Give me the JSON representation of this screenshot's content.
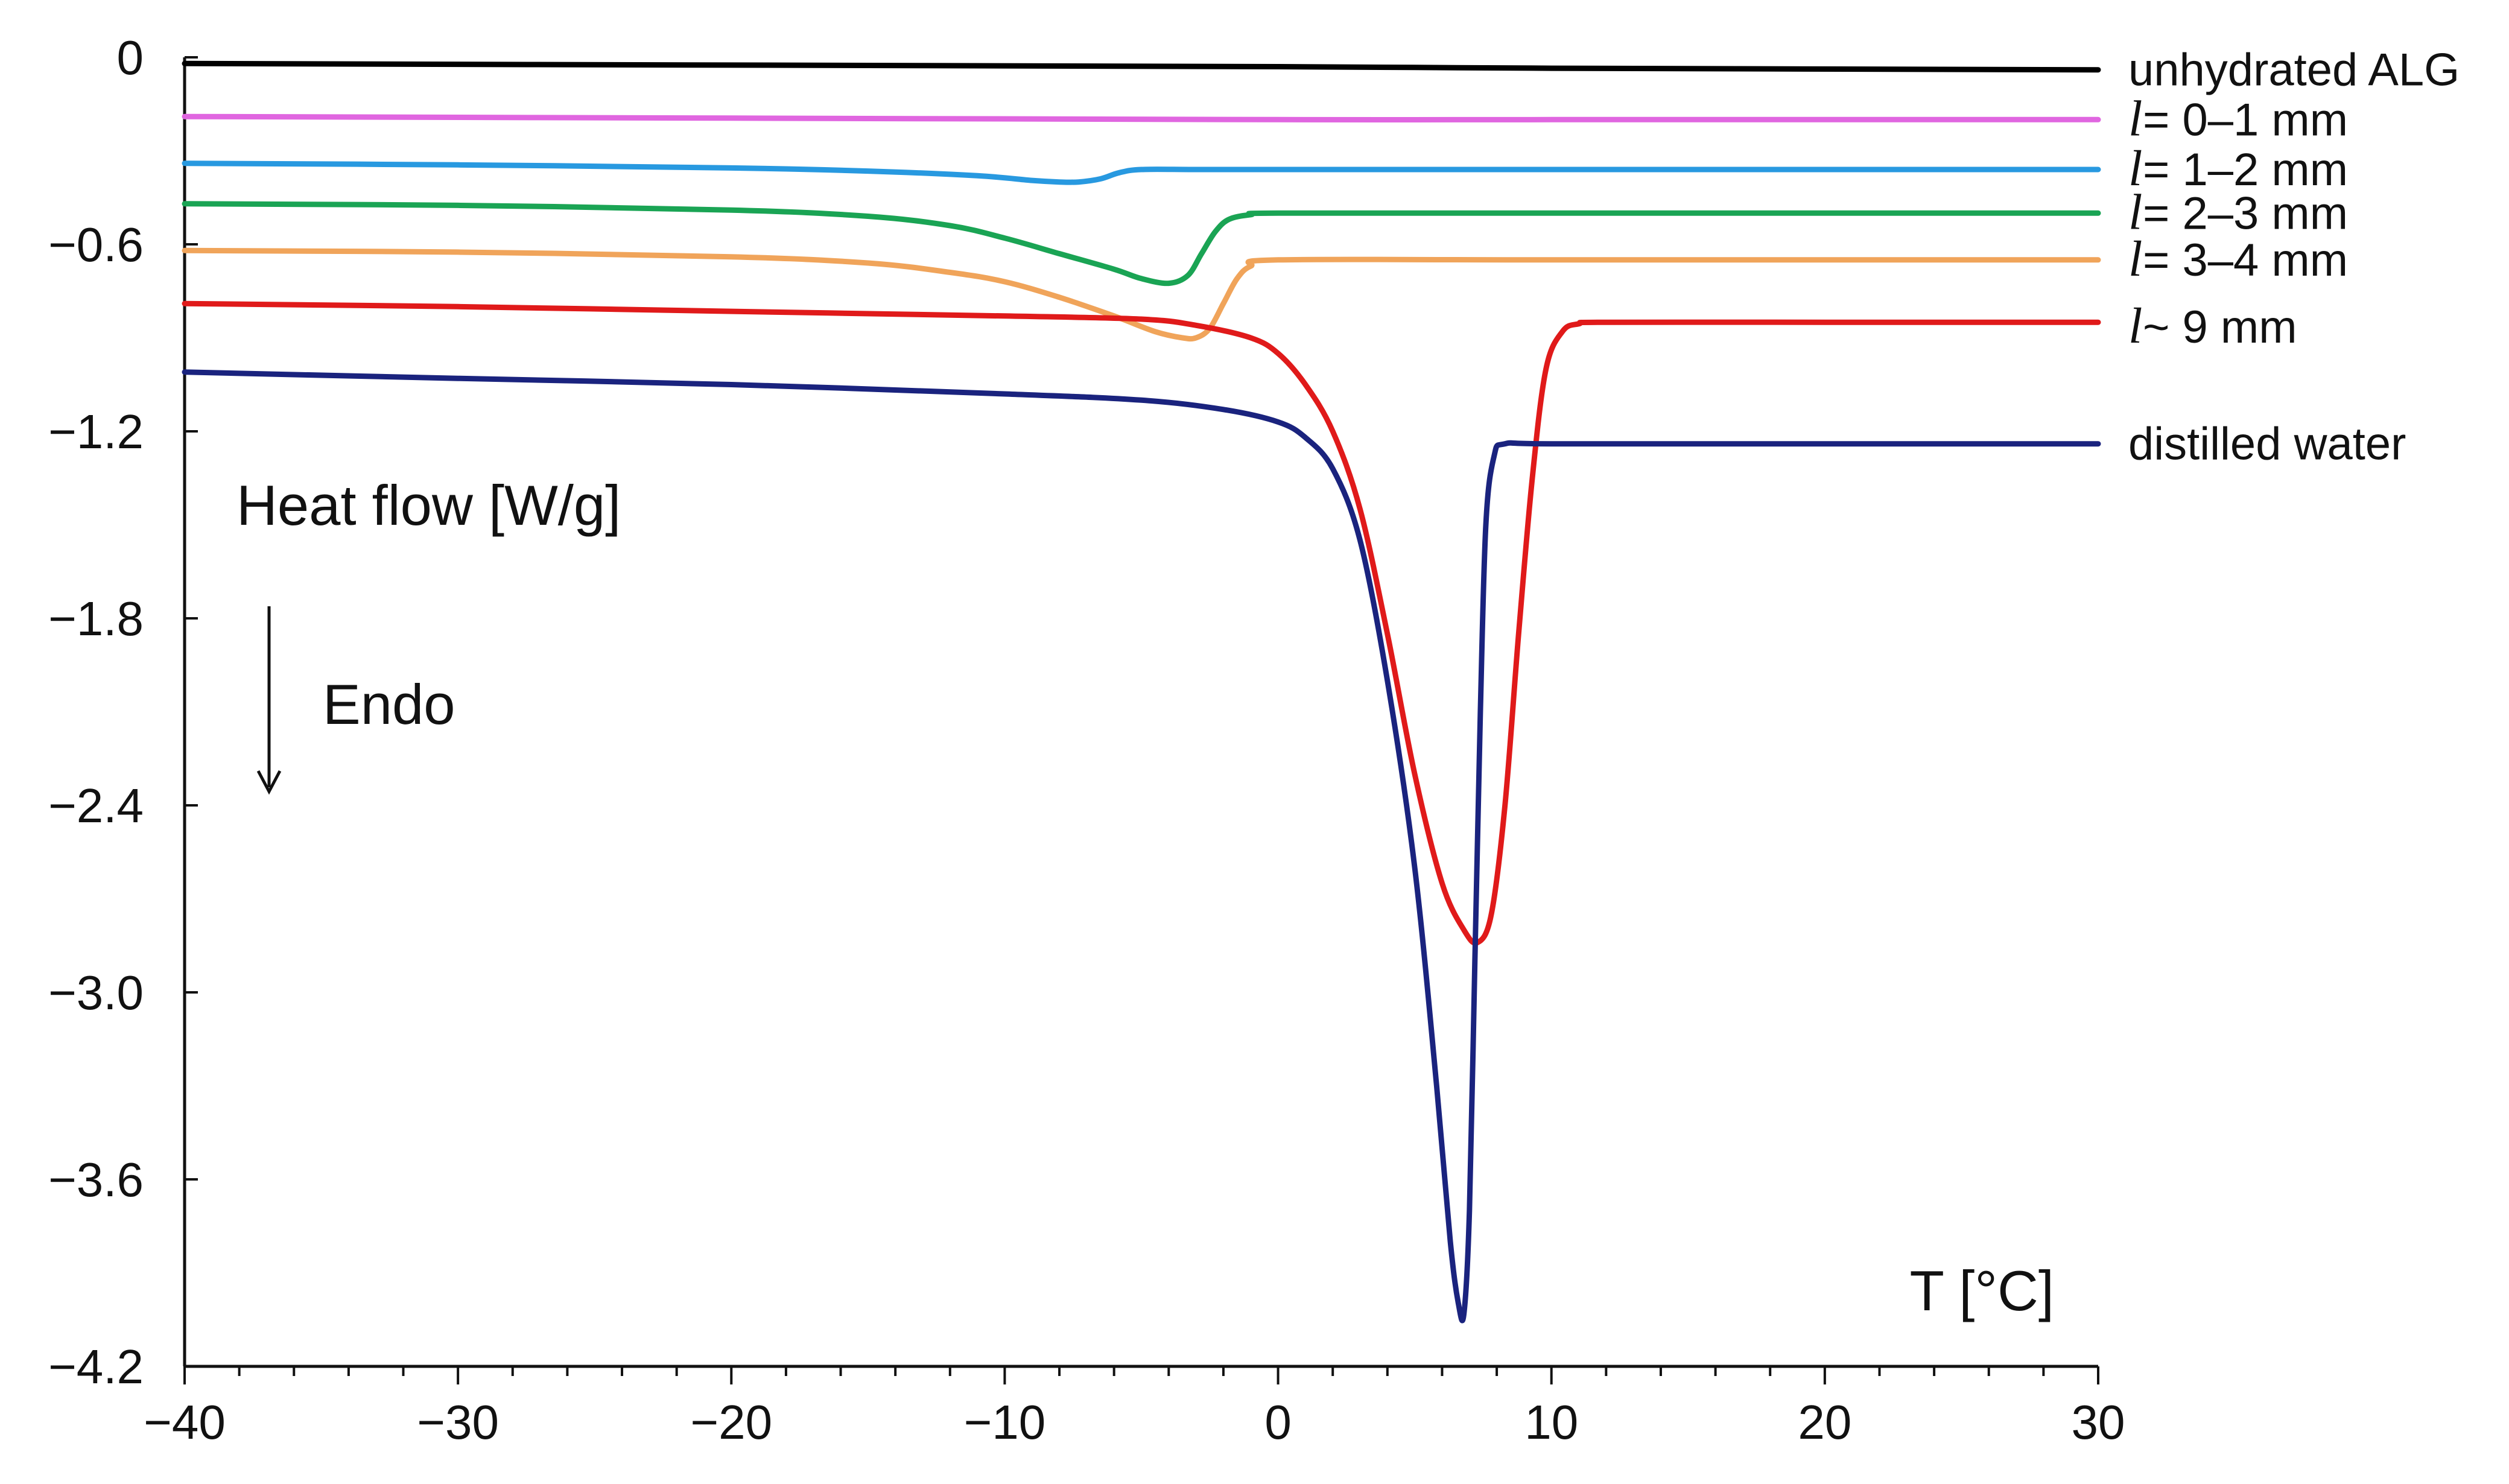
{
  "chart_data": {
    "type": "line",
    "title": "",
    "xlabel": "T [°C]",
    "ylabel": "Heat flow [W/g]",
    "annotation": "Endo",
    "annotation_arrow": "down",
    "xlim": [
      -40,
      30
    ],
    "ylim": [
      -4.2,
      0
    ],
    "x_ticks": [
      -40,
      -30,
      -20,
      -10,
      0,
      10,
      20,
      30
    ],
    "x_tick_labels": [
      "−40",
      "−30",
      "−20",
      "−10",
      "0",
      "10",
      "20",
      "30"
    ],
    "y_ticks": [
      0,
      -0.6,
      -1.2,
      -1.8,
      -2.4,
      -3.0,
      -3.6,
      -4.2
    ],
    "y_tick_labels": [
      "0",
      "−0.6",
      "−1.2",
      "−1.8",
      "−2.4",
      "−3.0",
      "−3.6",
      "−4.2"
    ],
    "grid": false,
    "legend": "inline labels at right end of each curve",
    "series": [
      {
        "name": "unhydrated ALG",
        "label_prefix": "",
        "label_text": "unhydrated ALG",
        "color": "#000000",
        "points": [
          [
            -40,
            -0.02
          ],
          [
            -20,
            -0.025
          ],
          [
            0,
            -0.03
          ],
          [
            10,
            -0.035
          ],
          [
            30,
            -0.04
          ]
        ]
      },
      {
        "name": "l = 0–1 mm",
        "label_prefix": "l",
        "label_text": " = 0–1 mm",
        "color": "#e066e0",
        "points": [
          [
            -40,
            -0.19
          ],
          [
            -20,
            -0.195
          ],
          [
            0,
            -0.2
          ],
          [
            10,
            -0.2
          ],
          [
            30,
            -0.2
          ]
        ]
      },
      {
        "name": "l = 1–2 mm",
        "label_prefix": "l",
        "label_text": " = 1–2 mm",
        "color": "#2899e0",
        "points": [
          [
            -40,
            -0.34
          ],
          [
            -30,
            -0.345
          ],
          [
            -20,
            -0.355
          ],
          [
            -15,
            -0.365
          ],
          [
            -11,
            -0.38
          ],
          [
            -9,
            -0.395
          ],
          [
            -8,
            -0.4
          ],
          [
            -7.3,
            -0.4
          ],
          [
            -6.5,
            -0.39
          ],
          [
            -5.8,
            -0.37
          ],
          [
            -5,
            -0.36
          ],
          [
            -3,
            -0.36
          ],
          [
            0,
            -0.36
          ],
          [
            10,
            -0.36
          ],
          [
            30,
            -0.36
          ]
        ]
      },
      {
        "name": "l = 2–3 mm",
        "label_prefix": "l",
        "label_text": " = 2–3 mm",
        "color": "#1aa454",
        "points": [
          [
            -40,
            -0.47
          ],
          [
            -30,
            -0.475
          ],
          [
            -20,
            -0.49
          ],
          [
            -15,
            -0.51
          ],
          [
            -12,
            -0.54
          ],
          [
            -10,
            -0.58
          ],
          [
            -8,
            -0.63
          ],
          [
            -6,
            -0.68
          ],
          [
            -5,
            -0.71
          ],
          [
            -4,
            -0.725
          ],
          [
            -3.3,
            -0.7
          ],
          [
            -2.8,
            -0.63
          ],
          [
            -2.3,
            -0.56
          ],
          [
            -1.8,
            -0.52
          ],
          [
            -1,
            -0.505
          ],
          [
            0,
            -0.5
          ],
          [
            10,
            -0.5
          ],
          [
            30,
            -0.5
          ]
        ]
      },
      {
        "name": "l = 3–4 mm",
        "label_prefix": "l",
        "label_text": " = 3–4 mm",
        "color": "#f0a45a",
        "points": [
          [
            -40,
            -0.62
          ],
          [
            -30,
            -0.625
          ],
          [
            -20,
            -0.64
          ],
          [
            -15,
            -0.66
          ],
          [
            -12,
            -0.69
          ],
          [
            -10,
            -0.72
          ],
          [
            -8,
            -0.77
          ],
          [
            -6,
            -0.83
          ],
          [
            -4.5,
            -0.88
          ],
          [
            -3.5,
            -0.9
          ],
          [
            -3,
            -0.9
          ],
          [
            -2.5,
            -0.87
          ],
          [
            -2,
            -0.79
          ],
          [
            -1.5,
            -0.71
          ],
          [
            -1,
            -0.67
          ],
          [
            0,
            -0.65
          ],
          [
            10,
            -0.65
          ],
          [
            30,
            -0.65
          ]
        ]
      },
      {
        "name": "l ~ 9 mm",
        "label_prefix": "l",
        "label_text": " ~ 9 mm",
        "color": "#e01a1a",
        "points": [
          [
            -40,
            -0.79
          ],
          [
            -30,
            -0.8
          ],
          [
            -20,
            -0.815
          ],
          [
            -10,
            -0.83
          ],
          [
            -5,
            -0.84
          ],
          [
            -3,
            -0.86
          ],
          [
            -1,
            -0.9
          ],
          [
            0,
            -0.95
          ],
          [
            1,
            -1.05
          ],
          [
            2,
            -1.2
          ],
          [
            3,
            -1.45
          ],
          [
            4,
            -1.85
          ],
          [
            5,
            -2.3
          ],
          [
            6,
            -2.65
          ],
          [
            6.8,
            -2.8
          ],
          [
            7.3,
            -2.84
          ],
          [
            7.8,
            -2.75
          ],
          [
            8.3,
            -2.4
          ],
          [
            8.8,
            -1.85
          ],
          [
            9.3,
            -1.35
          ],
          [
            9.8,
            -1.0
          ],
          [
            10.4,
            -0.88
          ],
          [
            11,
            -0.855
          ],
          [
            12,
            -0.85
          ],
          [
            20,
            -0.85
          ],
          [
            30,
            -0.85
          ]
        ]
      },
      {
        "name": "distilled water",
        "label_prefix": "",
        "label_text": "distilled water",
        "color": "#1a237e",
        "points": [
          [
            -40,
            -1.01
          ],
          [
            -30,
            -1.03
          ],
          [
            -20,
            -1.05
          ],
          [
            -10,
            -1.08
          ],
          [
            -5,
            -1.1
          ],
          [
            -2,
            -1.13
          ],
          [
            0,
            -1.17
          ],
          [
            1,
            -1.22
          ],
          [
            2,
            -1.32
          ],
          [
            3,
            -1.55
          ],
          [
            4,
            -2.0
          ],
          [
            5,
            -2.6
          ],
          [
            5.8,
            -3.3
          ],
          [
            6.3,
            -3.8
          ],
          [
            6.6,
            -4.0
          ],
          [
            6.8,
            -4.03
          ],
          [
            7.0,
            -3.7
          ],
          [
            7.2,
            -2.9
          ],
          [
            7.4,
            -2.1
          ],
          [
            7.6,
            -1.5
          ],
          [
            7.9,
            -1.28
          ],
          [
            8.3,
            -1.24
          ],
          [
            10,
            -1.24
          ],
          [
            20,
            -1.24
          ],
          [
            30,
            -1.24
          ]
        ]
      }
    ]
  }
}
